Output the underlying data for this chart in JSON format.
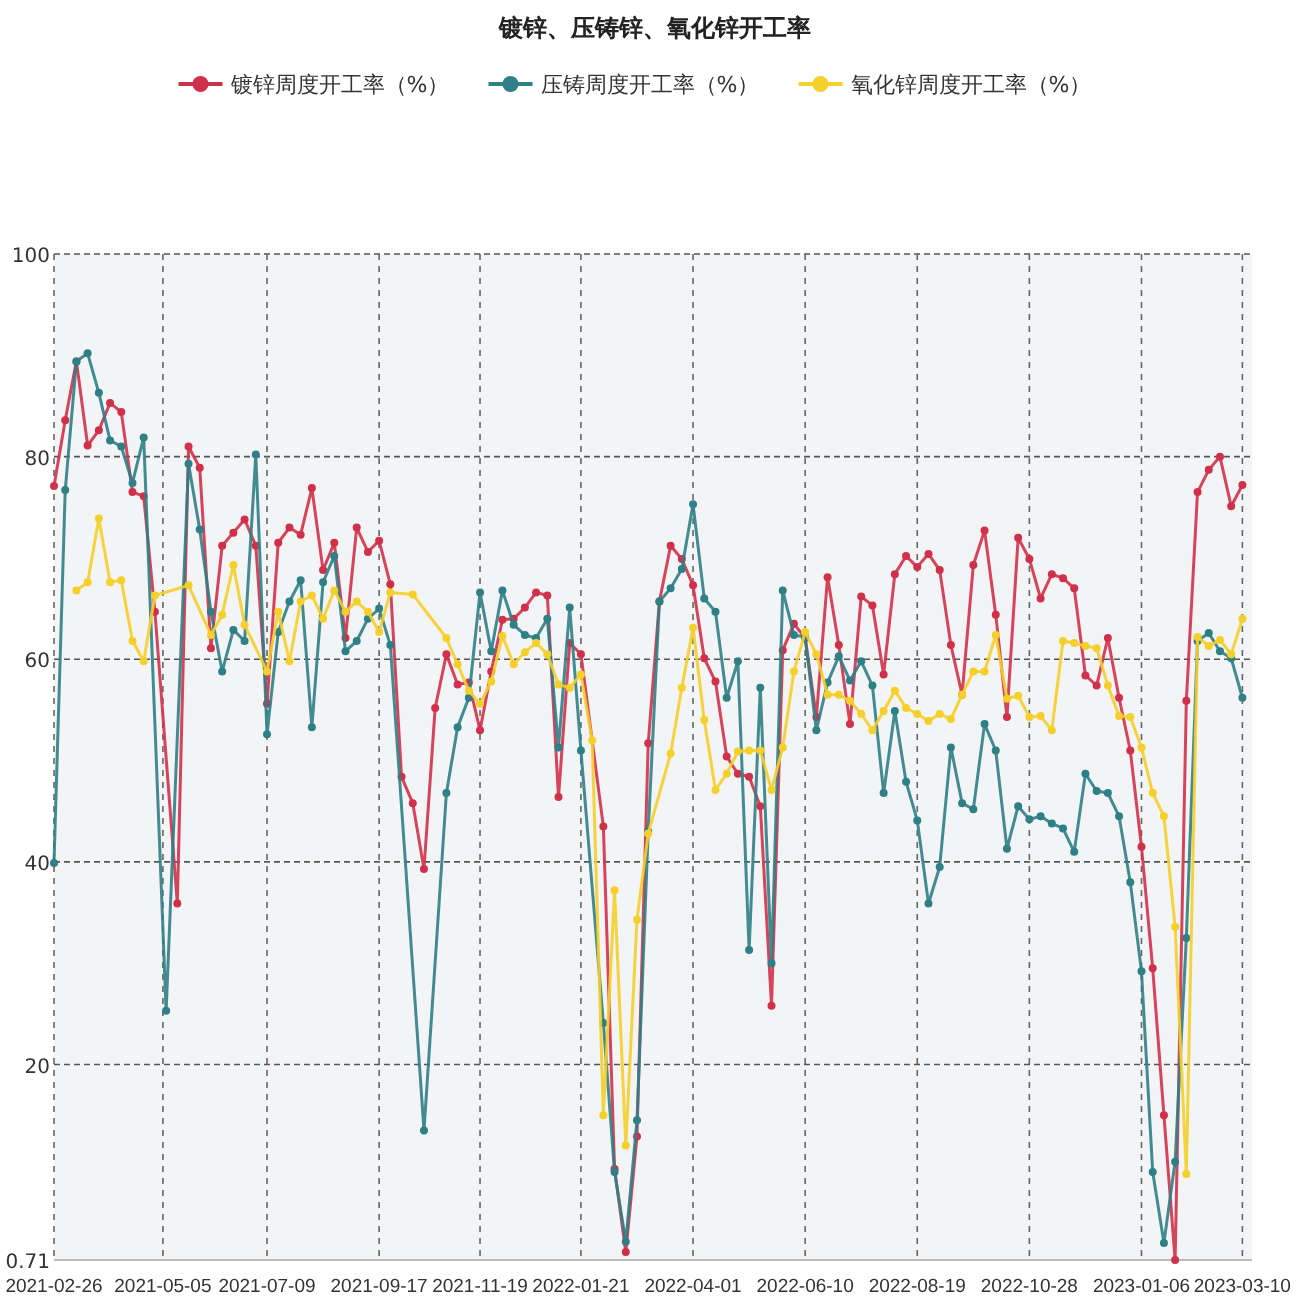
{
  "chart_data": {
    "type": "line",
    "title": "镀锌、压铸锌、氧化锌开工率",
    "x": [
      "2021-02-26",
      "2021-03-05",
      "2021-03-12",
      "2021-03-19",
      "2021-03-26",
      "2021-04-02",
      "2021-04-09",
      "2021-04-16",
      "2021-04-23",
      "2021-04-30",
      "2021-05-07",
      "2021-05-14",
      "2021-05-21",
      "2021-05-28",
      "2021-06-04",
      "2021-06-11",
      "2021-06-18",
      "2021-06-25",
      "2021-07-02",
      "2021-07-09",
      "2021-07-16",
      "2021-07-23",
      "2021-07-30",
      "2021-08-06",
      "2021-08-13",
      "2021-08-20",
      "2021-08-27",
      "2021-09-03",
      "2021-09-10",
      "2021-09-17",
      "2021-09-24",
      "2021-10-01",
      "2021-10-08",
      "2021-10-15",
      "2021-10-22",
      "2021-10-29",
      "2021-11-05",
      "2021-11-12",
      "2021-11-19",
      "2021-11-26",
      "2021-12-03",
      "2021-12-10",
      "2021-12-17",
      "2021-12-24",
      "2021-12-31",
      "2022-01-07",
      "2022-01-14",
      "2022-01-21",
      "2022-01-28",
      "2022-02-04",
      "2022-02-11",
      "2022-02-18",
      "2022-02-25",
      "2022-03-04",
      "2022-03-11",
      "2022-03-18",
      "2022-03-25",
      "2022-04-01",
      "2022-04-08",
      "2022-04-15",
      "2022-04-22",
      "2022-04-29",
      "2022-05-06",
      "2022-05-13",
      "2022-05-20",
      "2022-05-27",
      "2022-06-03",
      "2022-06-10",
      "2022-06-17",
      "2022-06-24",
      "2022-07-01",
      "2022-07-08",
      "2022-07-15",
      "2022-07-22",
      "2022-07-29",
      "2022-08-05",
      "2022-08-12",
      "2022-08-19",
      "2022-08-26",
      "2022-09-02",
      "2022-09-09",
      "2022-09-16",
      "2022-09-23",
      "2022-09-30",
      "2022-10-07",
      "2022-10-14",
      "2022-10-21",
      "2022-10-28",
      "2022-11-04",
      "2022-11-11",
      "2022-11-18",
      "2022-11-25",
      "2022-12-02",
      "2022-12-09",
      "2022-12-16",
      "2022-12-23",
      "2022-12-30",
      "2023-01-06",
      "2023-01-13",
      "2023-01-20",
      "2023-01-27",
      "2023-02-03",
      "2023-02-10",
      "2023-02-17",
      "2023-02-24",
      "2023-03-03",
      "2023-03-10"
    ],
    "series": [
      {
        "name": "镀锌周度开工率（%）",
        "color": "#d0314a",
        "values": [
          77.1,
          83.6,
          89.4,
          81.1,
          82.6,
          85.3,
          84.4,
          76.5,
          76.1,
          64.7,
          null,
          35.9,
          81.0,
          78.9,
          61.1,
          71.2,
          72.5,
          73.8,
          71.2,
          55.6,
          71.5,
          73.0,
          72.3,
          76.9,
          68.8,
          71.5,
          62.1,
          73.0,
          70.6,
          71.7,
          67.4,
          48.4,
          45.8,
          39.3,
          55.2,
          60.5,
          57.5,
          57.7,
          53.0,
          58.8,
          63.9,
          64.0,
          65.1,
          66.6,
          66.3,
          46.4,
          61.6,
          60.5,
          null,
          43.5,
          9.7,
          1.5,
          12.9,
          51.7,
          65.7,
          71.2,
          69.9,
          67.3,
          60.1,
          57.8,
          50.4,
          48.7,
          48.4,
          45.5,
          25.8,
          60.9,
          63.5,
          62.1,
          54.3,
          68.1,
          61.4,
          53.6,
          66.2,
          65.3,
          58.5,
          68.4,
          70.2,
          69.1,
          70.4,
          68.8,
          61.4,
          56.5,
          69.3,
          72.7,
          64.4,
          54.3,
          72.0,
          69.9,
          66.0,
          68.4,
          68.0,
          67.0,
          58.4,
          57.4,
          62.1,
          56.2,
          51.0,
          41.5,
          29.5,
          15.0,
          0.71,
          55.9,
          76.5,
          78.7,
          80.0,
          75.1,
          77.2
        ]
      },
      {
        "name": "压铸周度开工率（%）",
        "color": "#2e7f86",
        "values": [
          39.9,
          76.7,
          89.4,
          90.2,
          86.3,
          81.6,
          81.0,
          77.4,
          81.9,
          null,
          25.3,
          null,
          79.3,
          72.8,
          64.7,
          58.8,
          62.9,
          61.8,
          80.2,
          52.6,
          62.7,
          65.7,
          67.8,
          53.3,
          67.6,
          70.2,
          60.8,
          61.8,
          64.0,
          65.0,
          61.4,
          null,
          null,
          13.5,
          null,
          46.8,
          53.3,
          56.2,
          66.6,
          60.8,
          66.8,
          63.4,
          62.4,
          62.1,
          64.0,
          51.3,
          65.1,
          51.0,
          null,
          24.1,
          9.4,
          2.5,
          14.5,
          43.0,
          65.7,
          67.0,
          68.9,
          75.3,
          66.0,
          64.7,
          56.2,
          59.8,
          31.3,
          57.2,
          30.0,
          66.8,
          62.4,
          62.2,
          53.0,
          57.7,
          60.3,
          57.9,
          59.8,
          57.4,
          46.8,
          54.9,
          47.9,
          44.1,
          35.9,
          39.5,
          51.3,
          45.8,
          45.2,
          53.6,
          51.0,
          41.3,
          45.5,
          44.2,
          44.5,
          43.8,
          43.3,
          41.0,
          48.7,
          47.0,
          46.8,
          44.5,
          38.0,
          29.2,
          9.4,
          2.4,
          10.4,
          32.5,
          61.8,
          62.6,
          60.8,
          60.1,
          56.2
        ]
      },
      {
        "name": "氧化锌周度开工率（%）",
        "color": "#f5cf2a",
        "values": [
          null,
          null,
          66.8,
          67.6,
          73.9,
          67.6,
          67.8,
          61.8,
          59.8,
          66.3,
          null,
          null,
          67.3,
          null,
          62.4,
          64.4,
          69.3,
          63.4,
          null,
          58.8,
          64.7,
          59.8,
          65.7,
          66.3,
          64.0,
          66.8,
          64.7,
          65.7,
          64.7,
          62.7,
          66.6,
          null,
          66.4,
          null,
          null,
          62.1,
          59.5,
          56.9,
          55.6,
          57.8,
          62.3,
          59.5,
          60.7,
          61.6,
          60.5,
          57.5,
          57.2,
          58.5,
          52.0,
          15.0,
          37.2,
          12.0,
          34.3,
          42.8,
          null,
          50.7,
          57.2,
          63.1,
          54.0,
          47.1,
          48.7,
          50.9,
          51.0,
          51.0,
          47.1,
          51.3,
          58.8,
          62.7,
          60.5,
          56.5,
          56.5,
          55.9,
          54.6,
          53.0,
          54.9,
          56.9,
          55.2,
          54.6,
          53.9,
          54.6,
          54.1,
          56.5,
          58.8,
          58.8,
          62.4,
          56.1,
          56.4,
          54.3,
          54.4,
          53.0,
          61.8,
          61.6,
          61.3,
          61.1,
          57.4,
          54.4,
          54.3,
          51.3,
          46.8,
          44.5,
          33.6,
          9.2,
          62.2,
          61.3,
          61.9,
          60.5,
          64.0
        ]
      }
    ],
    "xlim": [
      "2021-02-26",
      "2023-03-16"
    ],
    "xticks": [
      "2021-02-26",
      "2021-05-05",
      "2021-07-09",
      "2021-09-17",
      "2021-11-19",
      "2022-01-21",
      "2022-04-01",
      "2022-06-10",
      "2022-08-19",
      "2022-10-28",
      "2023-01-06",
      "2023-03-10"
    ],
    "ylim": [
      0.71,
      100
    ],
    "yticks": [
      0.71,
      20,
      40,
      60,
      80,
      100
    ],
    "grid": true,
    "legend": "top",
    "marker": "circle",
    "line_style": "solid"
  }
}
